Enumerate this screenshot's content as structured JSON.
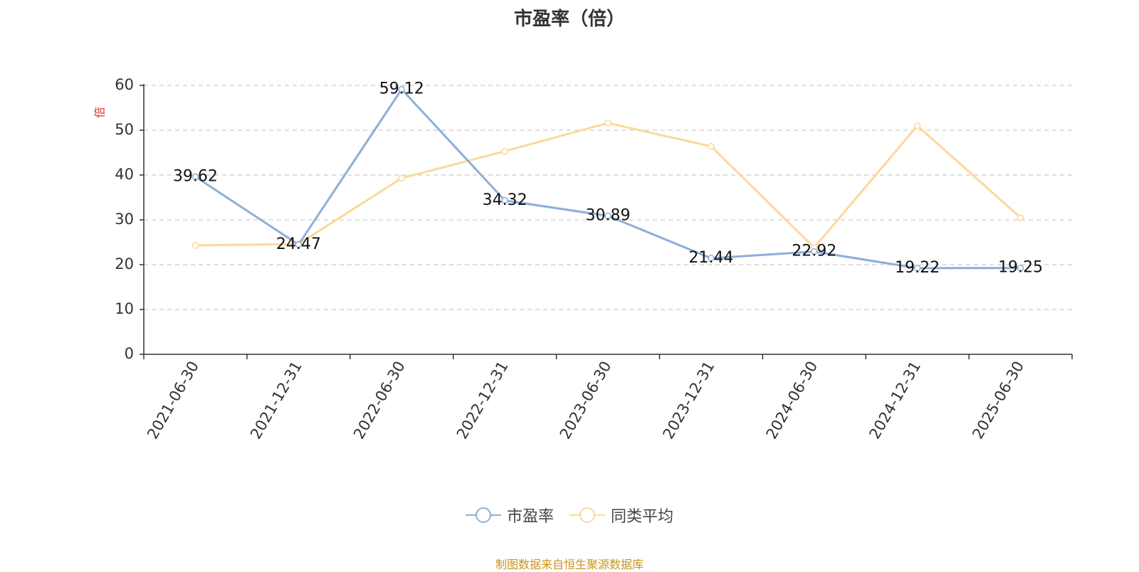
{
  "chart_data": {
    "type": "line",
    "title": "市盈率（倍）",
    "ylabel": "倍",
    "xlabel": "",
    "categories": [
      "2021-06-30",
      "2021-12-31",
      "2022-06-30",
      "2022-12-31",
      "2023-06-30",
      "2023-12-31",
      "2024-06-30",
      "2024-12-31",
      "2025-06-30"
    ],
    "ylim": [
      0,
      60
    ],
    "yticks": [
      0,
      10,
      20,
      30,
      40,
      50,
      60
    ],
    "grid": true,
    "legend_position": "bottom-center",
    "series": [
      {
        "name": "市盈率",
        "color": "#8eaed8",
        "labeled": true,
        "values": [
          39.62,
          24.47,
          59.12,
          34.32,
          30.89,
          21.44,
          22.92,
          19.22,
          19.25
        ]
      },
      {
        "name": "同类平均",
        "color": "#fcd999",
        "labeled": false,
        "values": [
          24.3,
          24.6,
          39.3,
          45.3,
          51.6,
          46.4,
          23.8,
          51.0,
          30.5
        ]
      }
    ]
  },
  "source_text": "制图数据来自恒生聚源数据库"
}
